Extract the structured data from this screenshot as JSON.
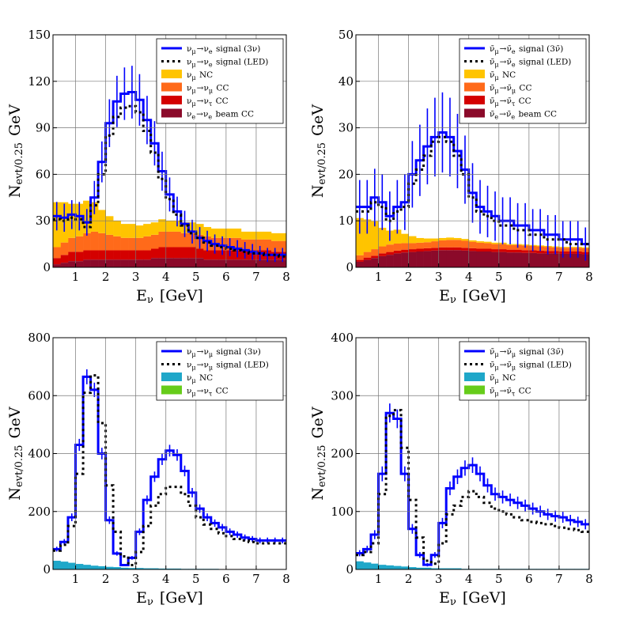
{
  "chart_data": [
    {
      "type": "bar",
      "panel": "top-left",
      "xlabel": "E_ν [GeV]",
      "ylabel": "N_evt/0.25 GeV",
      "xlim": [
        0.25,
        8
      ],
      "ylim": [
        0,
        150
      ],
      "xticks": [
        "1",
        "2",
        "3",
        "4",
        "5",
        "6",
        "7",
        "8"
      ],
      "yticks": [
        "0",
        "30",
        "60",
        "90",
        "120",
        "150"
      ],
      "grid": true,
      "legend_position": "top-right",
      "series": [
        {
          "name": "ν_μ→ν_e signal (3ν)",
          "style": "line",
          "color": "#0000ff",
          "values": [
            33,
            32,
            34,
            33,
            29,
            45,
            68,
            93,
            107,
            112,
            113,
            108,
            95,
            80,
            62,
            47,
            36,
            28,
            23,
            19,
            17,
            15,
            14,
            13,
            12,
            11,
            10,
            9,
            8,
            8,
            8
          ]
        },
        {
          "name": "ν_μ→ν_e signal (LED)",
          "style": "dotted",
          "color": "#000000",
          "values": [
            31,
            30,
            32,
            31,
            26,
            40,
            60,
            85,
            97,
            103,
            104,
            100,
            88,
            74,
            57,
            44,
            34,
            27,
            22,
            19,
            16,
            14,
            13,
            12,
            11,
            10,
            9,
            9,
            8,
            8,
            7
          ]
        },
        {
          "name": "ν_μ NC",
          "style": "stack",
          "color": "#ffc400",
          "values": [
            29,
            26,
            22,
            21,
            21,
            19,
            15,
            12,
            10,
            9,
            9,
            8,
            8,
            8,
            8,
            7,
            7,
            7,
            7,
            7,
            6,
            6,
            6,
            6,
            6,
            5,
            5,
            5,
            5,
            5,
            5
          ]
        },
        {
          "name": "ν_μ→ν_μ CC",
          "style": "stack",
          "color": "#ff6a1a",
          "values": [
            7,
            8,
            9,
            10,
            11,
            12,
            11,
            10,
            9,
            8,
            8,
            8,
            9,
            9,
            10,
            10,
            10,
            9,
            9,
            9,
            9,
            8,
            8,
            8,
            8,
            7,
            7,
            7,
            7,
            7,
            7
          ]
        },
        {
          "name": "ν_μ→ν_τ CC",
          "style": "stack",
          "color": "#d40000",
          "values": [
            4,
            5,
            6,
            6,
            6,
            6,
            6,
            6,
            6,
            6,
            6,
            6,
            6,
            6,
            7,
            7,
            7,
            7,
            7,
            6,
            6,
            6,
            6,
            6,
            6,
            6,
            6,
            6,
            6,
            5,
            5
          ]
        },
        {
          "name": "ν_e→ν_e beam CC",
          "style": "stack",
          "color": "#8b0a2a",
          "values": [
            2,
            3,
            4,
            4,
            5,
            5,
            5,
            5,
            5,
            5,
            5,
            5,
            5,
            6,
            6,
            6,
            6,
            6,
            6,
            6,
            5,
            5,
            5,
            5,
            5,
            5,
            5,
            5,
            5,
            5,
            5
          ]
        }
      ]
    },
    {
      "type": "bar",
      "panel": "top-right",
      "xlabel": "E_ν [GeV]",
      "ylabel": "N_evt/0.25 GeV",
      "xlim": [
        0.25,
        8
      ],
      "ylim": [
        0,
        50
      ],
      "xticks": [
        "1",
        "2",
        "3",
        "4",
        "5",
        "6",
        "7",
        "8"
      ],
      "yticks": [
        "0",
        "10",
        "20",
        "30",
        "40",
        "50"
      ],
      "grid": true,
      "legend_position": "top-right",
      "series": [
        {
          "name": "ν̄_μ→ν̄_e signal (3ν̄)",
          "style": "line",
          "color": "#0000ff",
          "values": [
            13,
            13,
            15,
            14,
            11,
            13,
            14,
            20,
            23,
            26,
            28,
            29,
            28,
            25,
            21,
            16,
            13,
            12,
            11,
            10,
            10,
            9,
            9,
            8,
            8,
            7,
            7,
            6,
            6,
            6,
            5
          ]
        },
        {
          "name": "ν̄_μ→ν̄_e signal (LED)",
          "style": "dotted",
          "color": "#000000",
          "values": [
            12,
            12,
            14,
            13,
            10,
            12,
            13,
            18,
            21,
            24,
            27,
            28,
            27,
            24,
            20,
            15,
            12,
            11,
            10,
            9,
            9,
            8,
            8,
            7,
            7,
            6,
            6,
            6,
            5,
            5,
            5
          ]
        },
        {
          "name": "ν̄_μ NC",
          "style": "stack",
          "color": "#ffc400",
          "values": [
            8,
            7,
            6,
            4,
            3,
            3,
            2,
            1.5,
            1,
            0.8,
            0.6,
            0.5,
            0.5,
            0.4,
            0.4,
            0.3,
            0.3,
            0.3,
            0.3,
            0.3,
            0.2,
            0.2,
            0.2,
            0.2,
            0.2,
            0.2,
            0.2,
            0.2,
            0.2,
            0.2,
            0.2
          ]
        },
        {
          "name": "ν̄_μ→ν̄_μ CC",
          "style": "stack",
          "color": "#ff6a1a",
          "values": [
            1,
            1.2,
            1.4,
            1.5,
            1.6,
            1.5,
            1.4,
            1.3,
            1.3,
            1.3,
            1.4,
            1.5,
            1.6,
            1.6,
            1.5,
            1.4,
            1.3,
            1.2,
            1.1,
            1.1,
            1,
            1,
            1,
            0.9,
            0.9,
            0.9,
            0.8,
            0.8,
            0.8,
            0.8,
            0.8
          ]
        },
        {
          "name": "ν̄_μ→ν̄_τ CC",
          "style": "stack",
          "color": "#d40000",
          "values": [
            0.4,
            0.5,
            0.5,
            0.6,
            0.6,
            0.6,
            0.6,
            0.6,
            0.6,
            0.6,
            0.6,
            0.6,
            0.6,
            0.6,
            0.6,
            0.6,
            0.6,
            0.6,
            0.6,
            0.6,
            0.6,
            0.6,
            0.6,
            0.6,
            0.6,
            0.5,
            0.5,
            0.5,
            0.5,
            0.5,
            0.5
          ]
        },
        {
          "name": "ν̄_e→ν̄_e beam CC",
          "style": "stack",
          "color": "#8b0a2a",
          "values": [
            1.2,
            1.6,
            2,
            2.4,
            2.7,
            3,
            3.2,
            3.3,
            3.4,
            3.5,
            3.6,
            3.7,
            3.7,
            3.7,
            3.6,
            3.5,
            3.4,
            3.4,
            3.3,
            3.3,
            3.2,
            3.2,
            3.1,
            3.1,
            3,
            3,
            3,
            2.9,
            2.9,
            2.9,
            2.8
          ]
        }
      ]
    },
    {
      "type": "bar",
      "panel": "bottom-left",
      "xlabel": "E_ν [GeV]",
      "ylabel": "N_evt/0.25 GeV",
      "xlim": [
        0.25,
        8
      ],
      "ylim": [
        0,
        800
      ],
      "xticks": [
        "1",
        "2",
        "3",
        "4",
        "5",
        "6",
        "7",
        "8"
      ],
      "yticks": [
        "0",
        "200",
        "400",
        "600",
        "800"
      ],
      "grid": true,
      "legend_position": "top-right",
      "series": [
        {
          "name": "ν_μ→ν_μ signal (3ν)",
          "style": "line",
          "color": "#0000ff",
          "values": [
            70,
            95,
            180,
            430,
            665,
            620,
            400,
            170,
            55,
            15,
            40,
            130,
            240,
            320,
            380,
            410,
            395,
            340,
            265,
            210,
            180,
            160,
            145,
            130,
            120,
            110,
            105,
            100,
            100,
            100,
            100
          ]
        },
        {
          "name": "ν_μ→ν_μ signal (LED)",
          "style": "dotted",
          "color": "#000000",
          "values": [
            65,
            85,
            150,
            330,
            610,
            670,
            505,
            290,
            130,
            45,
            15,
            60,
            150,
            220,
            260,
            285,
            285,
            260,
            220,
            180,
            155,
            140,
            125,
            115,
            105,
            100,
            95,
            90,
            90,
            90,
            90
          ]
        },
        {
          "name": "ν_μ NC",
          "style": "stack",
          "color": "#1fa7c9",
          "values": [
            30,
            27,
            23,
            19,
            16,
            13,
            11,
            9,
            8,
            6,
            5,
            5,
            4,
            4,
            3,
            3,
            3,
            2,
            2,
            2,
            2,
            2,
            1,
            1,
            1,
            1,
            1,
            1,
            1,
            1,
            1
          ]
        },
        {
          "name": "ν_μ→ν_τ CC",
          "style": "stack",
          "color": "#66cc1a",
          "values": [
            0,
            0,
            0,
            0,
            0,
            0,
            0,
            0,
            0,
            0,
            0,
            0,
            0,
            0,
            0,
            0,
            0,
            0,
            0,
            0,
            0,
            0,
            0,
            0,
            0,
            0,
            0,
            0,
            0,
            0,
            0
          ]
        }
      ]
    },
    {
      "type": "bar",
      "panel": "bottom-right",
      "xlabel": "E_ν [GeV]",
      "ylabel": "N_evt/0.25 GeV",
      "xlim": [
        0.25,
        8
      ],
      "ylim": [
        0,
        400
      ],
      "xticks": [
        "1",
        "2",
        "3",
        "4",
        "5",
        "6",
        "7",
        "8"
      ],
      "yticks": [
        "0",
        "100",
        "200",
        "300",
        "400"
      ],
      "grid": true,
      "legend_position": "top-right",
      "series": [
        {
          "name": "ν̄_μ→ν̄_μ signal (3ν̄)",
          "style": "line",
          "color": "#0000ff",
          "values": [
            28,
            35,
            60,
            165,
            270,
            260,
            165,
            70,
            25,
            8,
            25,
            80,
            140,
            160,
            175,
            180,
            165,
            145,
            130,
            125,
            120,
            115,
            110,
            105,
            100,
            95,
            92,
            90,
            85,
            82,
            78
          ]
        },
        {
          "name": "ν̄_μ→ν̄_μ signal (LED)",
          "style": "dotted",
          "color": "#000000",
          "values": [
            25,
            30,
            45,
            130,
            265,
            275,
            210,
            120,
            55,
            15,
            10,
            45,
            95,
            110,
            125,
            135,
            125,
            115,
            105,
            100,
            95,
            90,
            85,
            82,
            80,
            78,
            75,
            72,
            70,
            68,
            65
          ]
        },
        {
          "name": "ν̄_μ NC",
          "style": "stack",
          "color": "#1fa7c9",
          "values": [
            14,
            12,
            10,
            8,
            7,
            6,
            5,
            4,
            3,
            3,
            2,
            2,
            2,
            2,
            1,
            1,
            1,
            1,
            1,
            1,
            1,
            1,
            1,
            1,
            1,
            1,
            1,
            1,
            1,
            1,
            1
          ]
        },
        {
          "name": "ν̄_μ→ν̄_τ CC",
          "style": "stack",
          "color": "#66cc1a",
          "values": [
            0,
            0,
            0,
            0,
            0,
            0,
            0,
            0,
            0,
            0,
            0,
            0,
            0,
            0,
            0,
            0,
            0,
            0,
            0,
            0,
            0,
            0,
            0,
            0,
            0,
            0,
            0,
            0,
            0,
            0,
            0
          ]
        }
      ]
    }
  ]
}
